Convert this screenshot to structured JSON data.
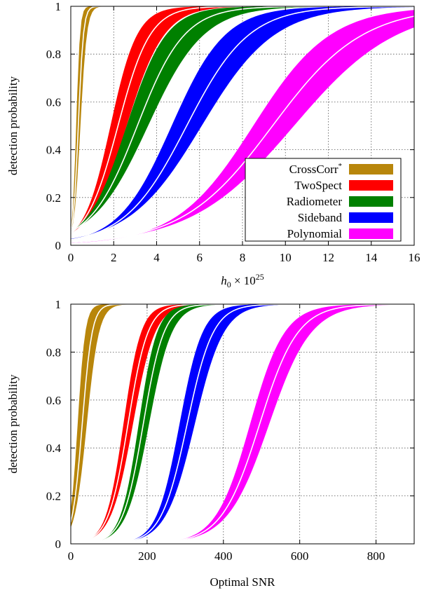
{
  "chart_data": [
    {
      "type": "area",
      "xlabel": "h0 × 10^25",
      "ylabel": "detection probability",
      "xlim": [
        0,
        16
      ],
      "ylim": [
        0,
        1
      ],
      "xticks": [
        "0",
        "2",
        "4",
        "6",
        "8",
        "10",
        "12",
        "14",
        "16"
      ],
      "yticks": [
        "0",
        "0.2",
        "0.4",
        "0.6",
        "0.8",
        "1"
      ],
      "grid": true,
      "legend_position": "bottom-right",
      "series": [
        {
          "name": "CrossCorr*",
          "color": "#b8860b",
          "center_at_half": 0.35,
          "low_at_half": 0.25,
          "high_at_half": 0.45,
          "width": 0.12,
          "low_width": 0.09,
          "high_width": 0.15
        },
        {
          "name": "TwoSpect",
          "color": "#ff0000",
          "center_at_half": 2.2,
          "low_at_half": 1.85,
          "high_at_half": 2.6,
          "width": 0.75,
          "low_width": 0.62,
          "high_width": 0.88
        },
        {
          "name": "Radiometer",
          "color": "#008000",
          "center_at_half": 3.1,
          "low_at_half": 2.6,
          "high_at_half": 3.6,
          "width": 1.1,
          "low_width": 0.92,
          "high_width": 1.3
        },
        {
          "name": "Sideband",
          "color": "#0000ff",
          "center_at_half": 5.4,
          "low_at_half": 4.7,
          "high_at_half": 6.1,
          "width": 1.45,
          "low_width": 1.25,
          "high_width": 1.7
        },
        {
          "name": "Polynomial",
          "color": "#ff00ff",
          "center_at_half": 9.4,
          "low_at_half": 8.5,
          "high_at_half": 10.4,
          "width": 2.1,
          "low_width": 1.8,
          "high_width": 2.4
        }
      ]
    },
    {
      "type": "area",
      "xlabel": "Optimal SNR",
      "ylabel": "detection probability",
      "xlim": [
        0,
        900
      ],
      "ylim": [
        0,
        1
      ],
      "xticks": [
        "0",
        "200",
        "400",
        "600",
        "800"
      ],
      "yticks": [
        "0",
        "0.2",
        "0.4",
        "0.6",
        "0.8",
        "1"
      ],
      "grid": true,
      "series": [
        {
          "name": "CrossCorr*",
          "color": "#b8860b",
          "center_at_half": 30,
          "low_at_half": 18,
          "high_at_half": 42,
          "width": 13,
          "low_width": 10,
          "high_width": 16
        },
        {
          "name": "TwoSpect",
          "color": "#ff0000",
          "center_at_half": 150,
          "low_at_half": 138,
          "high_at_half": 163,
          "width": 26,
          "low_width": 23,
          "high_width": 29
        },
        {
          "name": "Radiometer",
          "color": "#008000",
          "center_at_half": 190,
          "low_at_half": 178,
          "high_at_half": 205,
          "width": 27,
          "low_width": 24,
          "high_width": 30
        },
        {
          "name": "Sideband",
          "color": "#0000ff",
          "center_at_half": 305,
          "low_at_half": 285,
          "high_at_half": 325,
          "width": 34,
          "low_width": 30,
          "high_width": 38
        },
        {
          "name": "Polynomial",
          "color": "#ff00ff",
          "center_at_half": 495,
          "low_at_half": 470,
          "high_at_half": 520,
          "width": 50,
          "low_width": 45,
          "high_width": 55
        }
      ]
    }
  ]
}
